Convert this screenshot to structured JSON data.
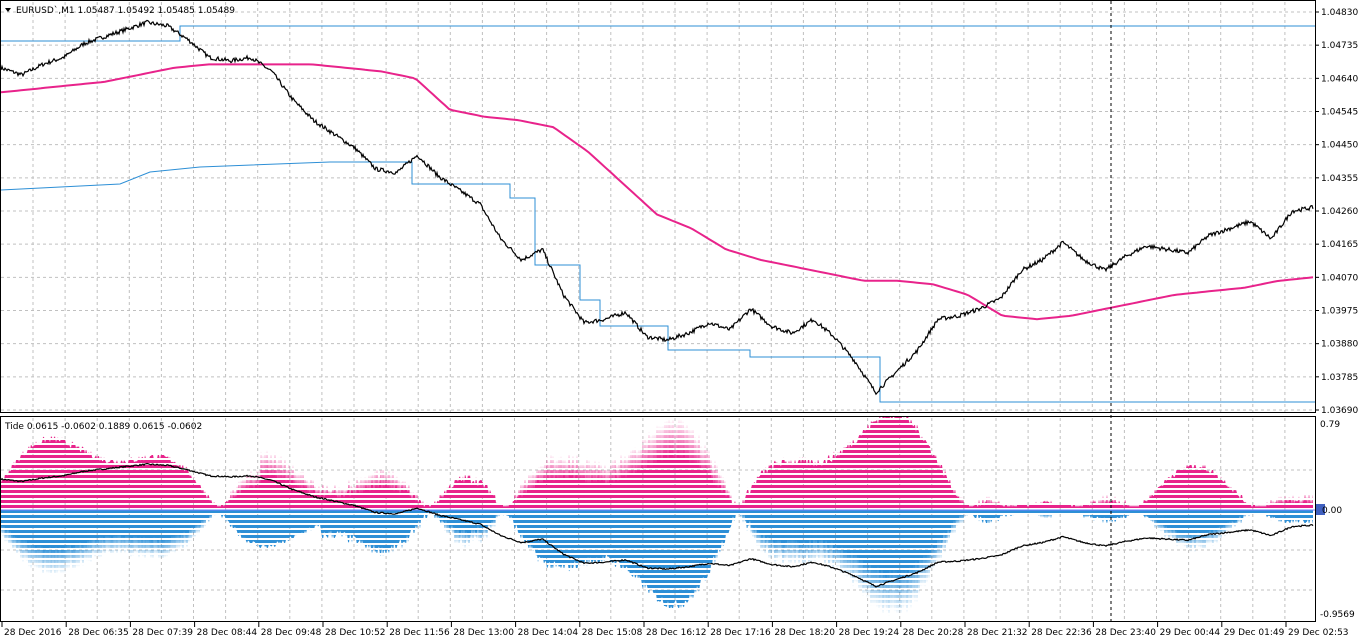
{
  "main_chart": {
    "symbol_info": "EURUSD`,M1  1.05487 1.05492 1.05485 1.05489",
    "price_ticks": [
      "1.04830",
      "1.04735",
      "1.04640",
      "1.04545",
      "1.04450",
      "1.04355",
      "1.04260",
      "1.04165",
      "1.04070",
      "1.03975",
      "1.03880",
      "1.03785",
      "1.03690"
    ],
    "price_range": [
      1.0369,
      1.0483
    ],
    "colors": {
      "price": "#000000",
      "ma": "#e8238b",
      "levels": "#2d8fd6",
      "grid": "#b8b8b8"
    }
  },
  "sub_chart": {
    "indicator_info": "Tide 0.0615 -0.0602 0.1889 0.0615 -0.0602",
    "top_label": "0.79",
    "zero_label": "0.00",
    "bottom_label": "-0.9569",
    "colors": {
      "positive": "#e8238b",
      "negative": "#2d8fd6",
      "line": "#000000"
    }
  },
  "time_axis": {
    "labels": [
      "28 Dec 2016",
      "28 Dec 06:35",
      "28 Dec 07:39",
      "28 Dec 08:44",
      "28 Dec 09:48",
      "28 Dec 10:52",
      "28 Dec 11:56",
      "28 Dec 13:00",
      "28 Dec 14:04",
      "28 Dec 15:08",
      "28 Dec 16:12",
      "28 Dec 17:16",
      "28 Dec 18:20",
      "28 Dec 19:24",
      "28 Dec 20:28",
      "28 Dec 21:32",
      "28 Dec 22:36",
      "28 Dec 23:40",
      "29 Dec 00:44",
      "29 Dec 01:49",
      "29 Dec 02:53"
    ]
  },
  "chart_data": {
    "type": "line",
    "series": [
      {
        "name": "EURUSD`,M1",
        "values": [
          1.0467,
          1.0465,
          1.0468,
          1.047,
          1.0474,
          1.0476,
          1.0478,
          1.048,
          1.0479,
          1.0475,
          1.047,
          1.0469,
          1.047,
          1.0466,
          1.0458,
          1.0452,
          1.0448,
          1.0444,
          1.0438,
          1.0437,
          1.0442,
          1.0436,
          1.0432,
          1.0428,
          1.0418,
          1.0412,
          1.0415,
          1.0402,
          1.0394,
          1.0395,
          1.0397,
          1.039,
          1.0389,
          1.0391,
          1.0394,
          1.0392,
          1.0398,
          1.0393,
          1.0391,
          1.0395,
          1.039,
          1.0383,
          1.0374,
          1.038,
          1.0386,
          1.0395,
          1.0396,
          1.0398,
          1.0401,
          1.0409,
          1.0412,
          1.0417,
          1.0412,
          1.0409,
          1.0413,
          1.0416,
          1.0415,
          1.0414,
          1.0419,
          1.0421,
          1.0423,
          1.0418,
          1.0426,
          1.0427
        ]
      },
      {
        "name": "MA",
        "values": [
          1.046,
          1.0461,
          1.0462,
          1.0463,
          1.0465,
          1.0467,
          1.0468,
          1.0468,
          1.0468,
          1.0468,
          1.0467,
          1.0466,
          1.0464,
          1.0455,
          1.0453,
          1.0452,
          1.045,
          1.0443,
          1.0434,
          1.0425,
          1.0421,
          1.0415,
          1.0412,
          1.041,
          1.0408,
          1.0406,
          1.0406,
          1.0405,
          1.0402,
          1.0396,
          1.0395,
          1.0396,
          1.0398,
          1.04,
          1.0402,
          1.0403,
          1.0404,
          1.0406,
          1.0407
        ]
      }
    ]
  }
}
